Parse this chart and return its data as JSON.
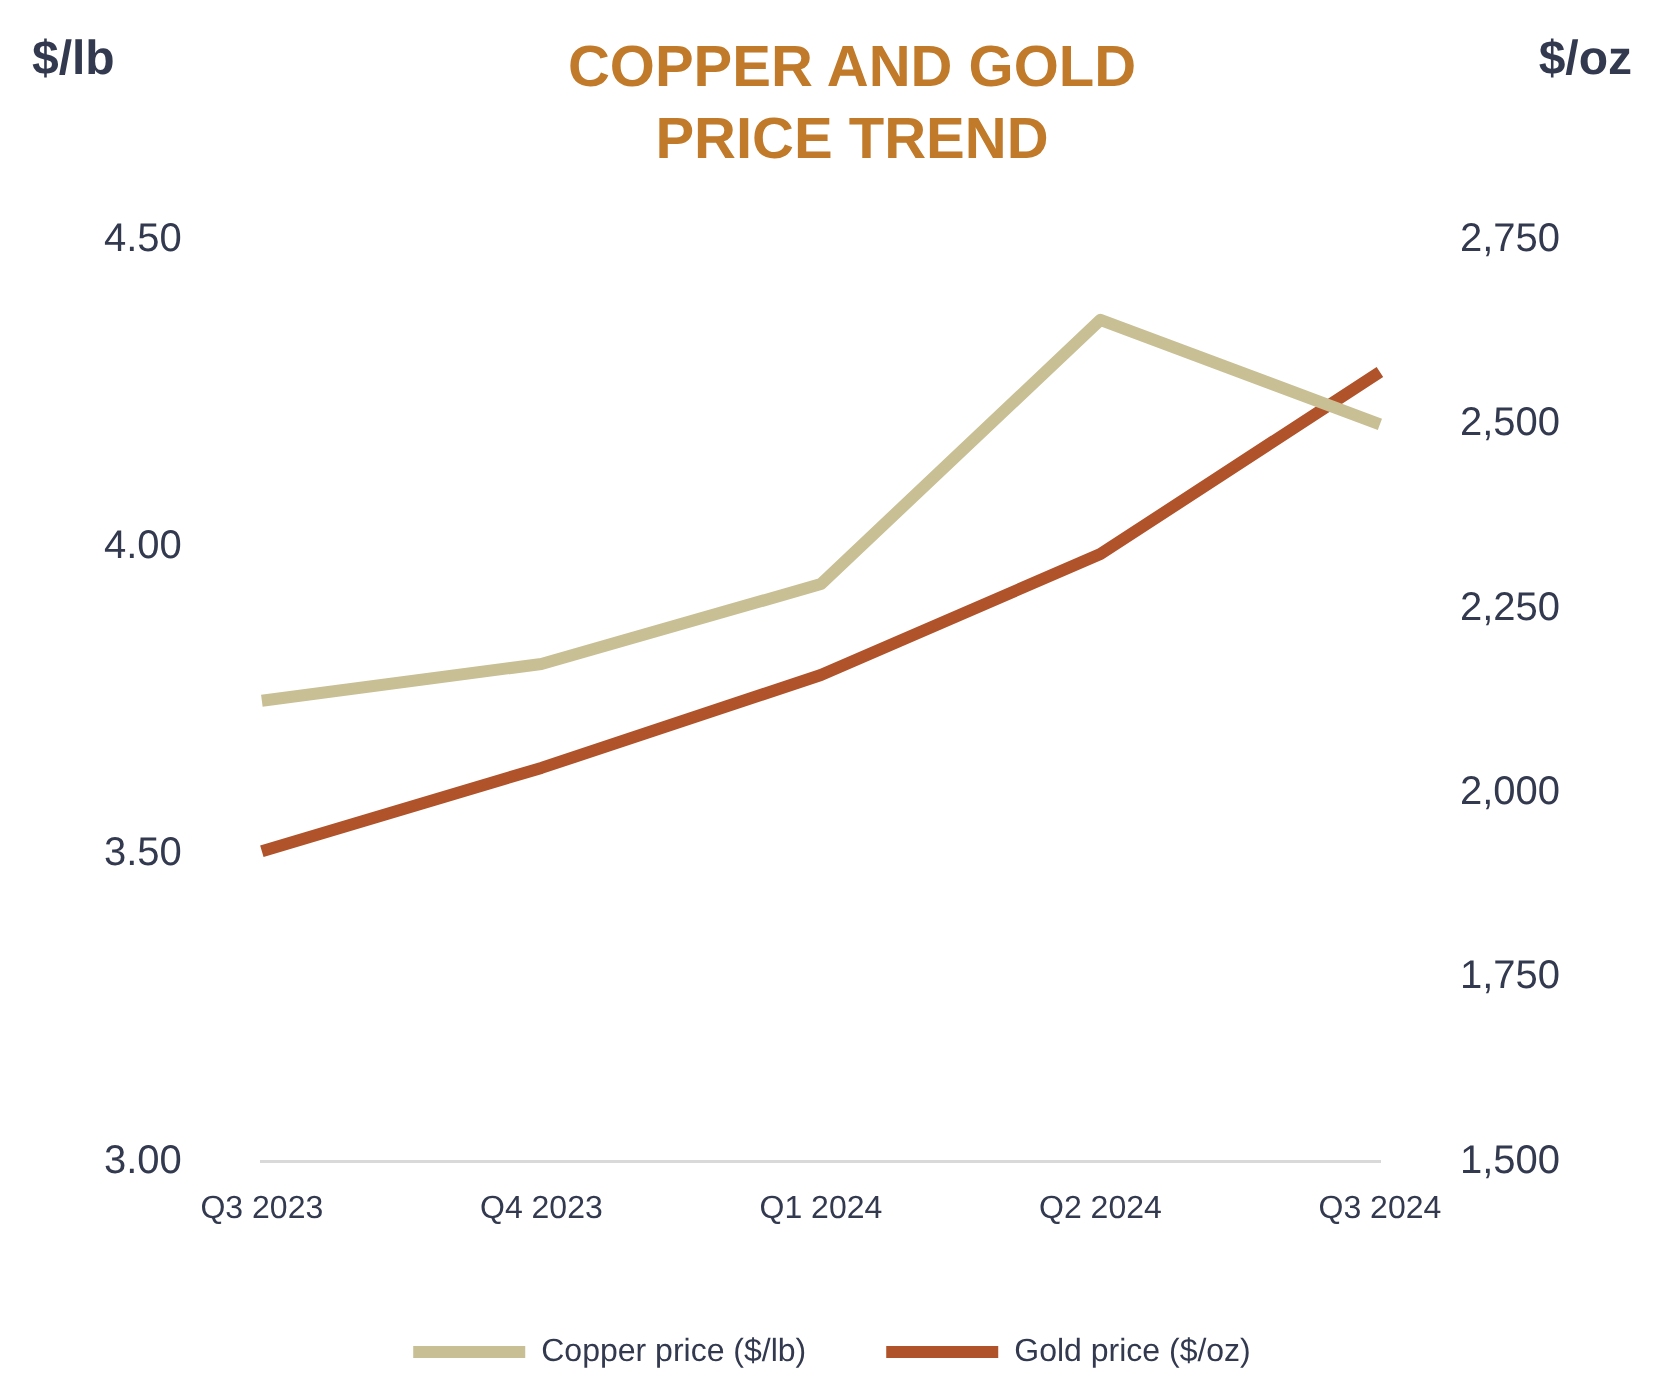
{
  "chart_data": {
    "type": "line",
    "title": "COPPER AND GOLD PRICE TREND",
    "ylabel": "$/lb",
    "y2label": "$/oz",
    "categories": [
      "Q3 2023",
      "Q4 2023",
      "Q1 2024",
      "Q2 2024",
      "Q3 2024"
    ],
    "series": [
      {
        "name": "Copper price ($/lb)",
        "color": "#c8bf94",
        "values": [
          3.75,
          3.81,
          3.94,
          4.37,
          4.2
        ]
      },
      {
        "name": "Gold price ($/oz)",
        "color": "#b0522a",
        "axis": "y2",
        "values": [
          1921,
          2034,
          2160,
          2324,
          2571
        ]
      }
    ],
    "ylim": [
      3,
      4.5
    ],
    "yticks": [
      {
        "value": 3,
        "label": "3.00"
      },
      {
        "value": 3.5,
        "label": "3.50"
      },
      {
        "value": 4,
        "label": "4.00"
      },
      {
        "value": 4.5,
        "label": "4.50"
      }
    ],
    "y2lim": [
      1500,
      2750
    ],
    "y2ticks": [
      {
        "value": 1500,
        "label": "1,500"
      },
      {
        "value": 1750,
        "label": "1,750"
      },
      {
        "value": 2000,
        "label": "2,000"
      },
      {
        "value": 2250,
        "label": "2,250"
      },
      {
        "value": 2500,
        "label": "2,500"
      },
      {
        "value": 2750,
        "label": "2,750"
      }
    ],
    "grid": false,
    "legend": "bottom",
    "marker": "none",
    "line_style": "solid"
  }
}
